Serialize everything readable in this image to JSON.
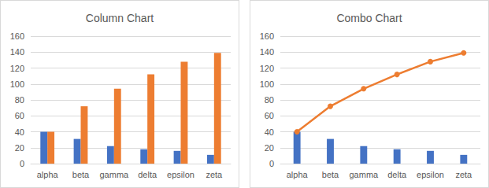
{
  "chart_data": [
    {
      "type": "bar",
      "title": "Column Chart",
      "categories": [
        "alpha",
        "beta",
        "gamma",
        "delta",
        "epsilon",
        "zeta"
      ],
      "series": [
        {
          "color": "#4472c4",
          "values": [
            40,
            31,
            22,
            18,
            16,
            11
          ]
        },
        {
          "color": "#ed7d31",
          "values": [
            40,
            72,
            94,
            112,
            128,
            139
          ]
        }
      ],
      "ylim": [
        0,
        160
      ],
      "yticks": [
        0,
        20,
        40,
        60,
        80,
        100,
        120,
        140,
        160
      ],
      "grid": true
    },
    {
      "type": "combo",
      "title": "Combo Chart",
      "categories": [
        "alpha",
        "beta",
        "gamma",
        "delta",
        "epsilon",
        "zeta"
      ],
      "series": [
        {
          "type": "bar",
          "color": "#4472c4",
          "values": [
            40,
            31,
            22,
            18,
            16,
            11
          ]
        },
        {
          "type": "line",
          "color": "#ed7d31",
          "marker": "circle",
          "values": [
            40,
            72,
            94,
            112,
            128,
            139
          ]
        }
      ],
      "ylim": [
        0,
        160
      ],
      "yticks": [
        0,
        20,
        40,
        60,
        80,
        100,
        120,
        140,
        160
      ],
      "grid": true
    }
  ]
}
